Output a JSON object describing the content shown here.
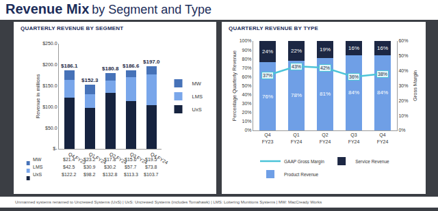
{
  "header": {
    "bold": "Revenue Mix",
    "rest": "by Segment and Type"
  },
  "footnote": "Unmanned systems renamed to Uncrewed Systems (UxS) | UxS: Uncrewed Systems (includes Tomahawk) | LMS: Loitering Munitions Systems | MW: MacCready Works",
  "chart_data": [
    {
      "type": "bar",
      "title": "QUARTERLY REVENUE BY SEGMENT",
      "y_label": "Revenue in millions",
      "stacked": true,
      "grid": false,
      "legend": "right",
      "categories": [
        "Q4 FY23",
        "Q1 FY24",
        "Q2 FY24",
        "Q3 FY24",
        "Q4 FY24"
      ],
      "series": [
        {
          "name": "UxS",
          "color": "#16233f",
          "values": [
            122.2,
            98.2,
            132.8,
            113.3,
            103.7
          ],
          "value_labels": [
            "$122.2",
            "$98.2",
            "$132.8",
            "$113.3",
            "$103.7"
          ]
        },
        {
          "name": "LMS",
          "color": "#79a6ea",
          "values": [
            42.5,
            30.9,
            30.2,
            57.7,
            73.8
          ],
          "value_labels": [
            "$42.5",
            "$30.9",
            "$30.2",
            "$57.7",
            "$73.8"
          ]
        },
        {
          "name": "MW",
          "color": "#4672b8",
          "values": [
            21.4,
            23.2,
            17.8,
            15.6,
            19.5
          ],
          "value_labels": [
            "$21.4",
            "$23.2",
            "$17.8",
            "$15.6",
            "$19.5"
          ]
        }
      ],
      "totals": [
        186.1,
        152.3,
        180.8,
        186.6,
        197.0
      ],
      "total_labels": [
        "$186.1",
        "$152.3",
        "$180.8",
        "$186.6",
        "$197.0"
      ],
      "ylim": [
        0,
        250
      ],
      "yticks": [
        {
          "value": 0,
          "label": "$-"
        },
        {
          "value": 50,
          "label": "$50.0"
        },
        {
          "value": 100,
          "label": "$100.0"
        },
        {
          "value": 150,
          "label": "$150.0"
        },
        {
          "value": 200,
          "label": "$200.0"
        },
        {
          "value": 250,
          "label": "$250.0"
        }
      ]
    },
    {
      "type": "bar",
      "title": "QUARTERLY REVENUE BY TYPE",
      "y_label": "Percentage Quarterly Revenue",
      "y2_label": "Gross Margin",
      "stacked": true,
      "grid": false,
      "legend": "bottom",
      "data_labels": true,
      "categories": [
        "Q4 FY23",
        "Q1 FY24",
        "Q2 FY24",
        "Q3 FY24",
        "Q4 FY24"
      ],
      "series": [
        {
          "name": "Product Revenue",
          "color": "#6f9fe6",
          "values": [
            76,
            78,
            81,
            84,
            84
          ],
          "value_labels": [
            "76%",
            "78%",
            "81%",
            "84%",
            "84%"
          ]
        },
        {
          "name": "Service Revenue",
          "color": "#1c2743",
          "values": [
            24,
            22,
            19,
            16,
            16
          ],
          "value_labels": [
            "24%",
            "22%",
            "19%",
            "16%",
            "16%"
          ]
        },
        {
          "name": "GAAP Gross Margin",
          "type": "line",
          "axis": "y2",
          "color": "#4cc4d8",
          "line_style": "solid",
          "values": [
            37,
            43,
            42,
            36,
            38
          ],
          "value_labels": [
            "37%",
            "43%",
            "42%",
            "36%",
            "38%"
          ]
        }
      ],
      "ylim": [
        0,
        100
      ],
      "yticks": [
        {
          "value": 0,
          "label": "0%"
        },
        {
          "value": 10,
          "label": "10%"
        },
        {
          "value": 20,
          "label": "20%"
        },
        {
          "value": 30,
          "label": "30%"
        },
        {
          "value": 40,
          "label": "40%"
        },
        {
          "value": 50,
          "label": "50%"
        },
        {
          "value": 60,
          "label": "60%"
        },
        {
          "value": 70,
          "label": "70%"
        },
        {
          "value": 80,
          "label": "80%"
        },
        {
          "value": 90,
          "label": "90%"
        },
        {
          "value": 100,
          "label": "100%"
        }
      ],
      "y2lim": [
        0,
        60
      ],
      "y2ticks": [
        {
          "value": 0,
          "label": "0%"
        },
        {
          "value": 10,
          "label": "10%"
        },
        {
          "value": 20,
          "label": "20%"
        },
        {
          "value": 30,
          "label": "30%"
        },
        {
          "value": 40,
          "label": "40%"
        },
        {
          "value": 50,
          "label": "50%"
        },
        {
          "value": 60,
          "label": "60%"
        }
      ]
    }
  ]
}
